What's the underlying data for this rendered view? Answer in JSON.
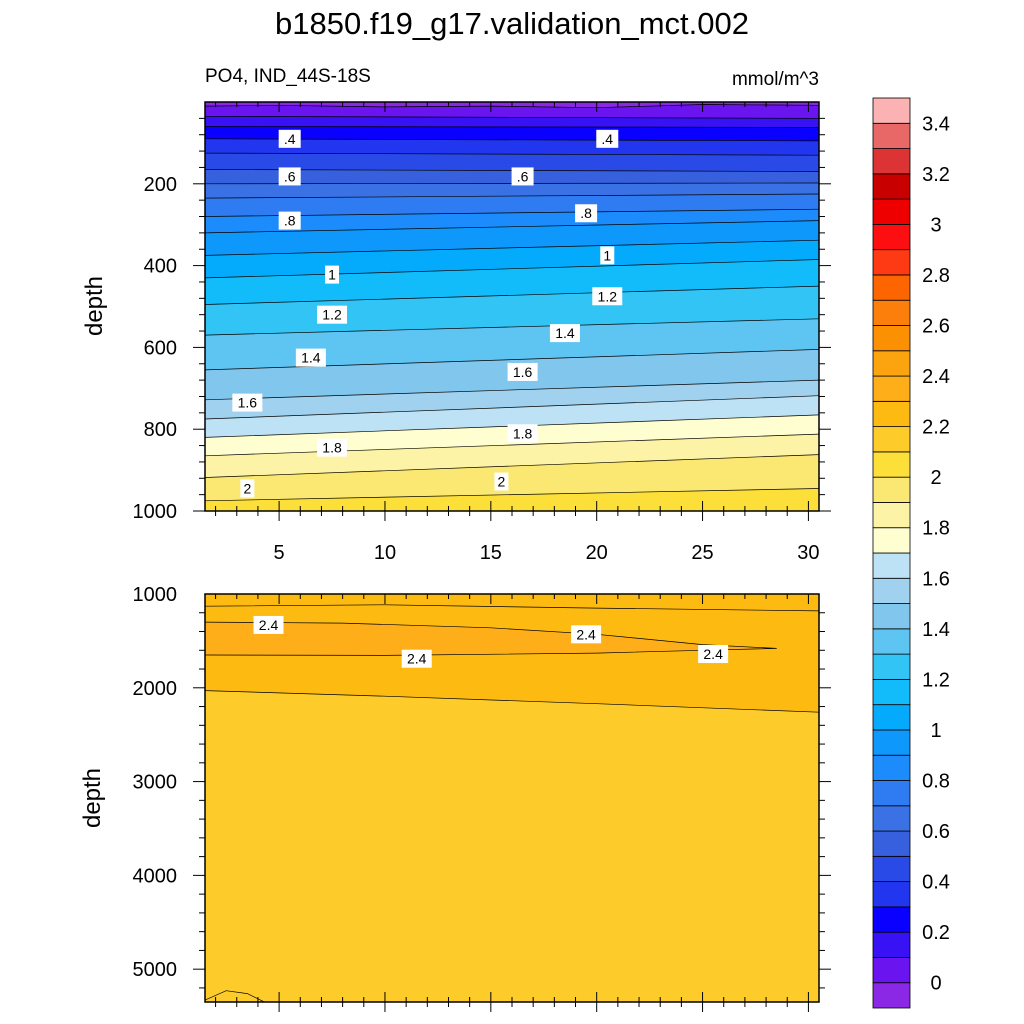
{
  "chart_data": {
    "type": "contour",
    "title": "b1850.f19_g17.validation_mct.002",
    "subtitle_left": "PO4, IND_44S-18S",
    "subtitle_right": "mmol/m^3",
    "x": {
      "lim": [
        1.5,
        30.5
      ],
      "ticks": [
        5,
        10,
        15,
        20,
        25,
        30
      ]
    },
    "panels": [
      {
        "name": "upper",
        "ylabel": "depth",
        "ylim": [
          0,
          1000
        ],
        "yticks": [
          200,
          400,
          600,
          800,
          1000
        ],
        "contours": [
          {
            "level": 0.1,
            "d": [
              [
                1.5,
                10
              ],
              [
                5,
                8
              ],
              [
                10,
                12
              ],
              [
                15,
                10
              ],
              [
                20,
                14
              ],
              [
                25,
                6
              ],
              [
                30.5,
                8
              ]
            ]
          },
          {
            "level": 0.2,
            "d": [
              [
                1.5,
                35
              ],
              [
                30.5,
                40
              ]
            ]
          },
          {
            "level": 0.3,
            "d": [
              [
                1.5,
                60
              ],
              [
                30.5,
                62
              ]
            ]
          },
          {
            "level": 0.4,
            "d": [
              [
                1.5,
                90
              ],
              [
                30.5,
                95
              ]
            ]
          },
          {
            "level": 0.5,
            "d": [
              [
                1.5,
                125
              ],
              [
                30.5,
                130
              ]
            ]
          },
          {
            "level": 0.6,
            "d": [
              [
                1.5,
                165
              ],
              [
                30.5,
                170
              ]
            ]
          },
          {
            "level": 0.7,
            "d": [
              [
                1.5,
                200
              ],
              [
                30.5,
                198
              ]
            ]
          },
          {
            "level": 0.8,
            "d": [
              [
                1.5,
                235
              ],
              [
                30.5,
                225
              ]
            ]
          },
          {
            "level": 0.9,
            "d": [
              [
                1.5,
                280
              ],
              [
                30.5,
                262
              ]
            ]
          },
          {
            "level": 1.0,
            "d": [
              [
                1.5,
                320
              ],
              [
                30.5,
                290
              ]
            ]
          },
          {
            "level": 1.1,
            "d": [
              [
                1.5,
                375
              ],
              [
                30.5,
                338
              ]
            ]
          },
          {
            "level": 1.2,
            "d": [
              [
                1.5,
                430
              ],
              [
                30.5,
                385
              ]
            ]
          },
          {
            "level": 1.3,
            "d": [
              [
                1.5,
                495
              ],
              [
                30.5,
                450
              ]
            ]
          },
          {
            "level": 1.4,
            "d": [
              [
                1.5,
                570
              ],
              [
                30.5,
                530
              ]
            ]
          },
          {
            "level": 1.5,
            "d": [
              [
                1.5,
                655
              ],
              [
                30.5,
                605
              ]
            ]
          },
          {
            "level": 1.6,
            "d": [
              [
                1.5,
                728
              ],
              [
                30.5,
                680
              ]
            ]
          },
          {
            "level": 1.7,
            "d": [
              [
                1.5,
                775
              ],
              [
                30.5,
                718
              ]
            ]
          },
          {
            "level": 1.8,
            "d": [
              [
                1.5,
                820
              ],
              [
                30.5,
                765
              ]
            ]
          },
          {
            "level": 1.9,
            "d": [
              [
                1.5,
                865
              ],
              [
                30.5,
                812
              ]
            ]
          },
          {
            "level": 2.0,
            "d": [
              [
                1.5,
                918
              ],
              [
                30.5,
                862
              ]
            ]
          },
          {
            "level": 2.1,
            "d": [
              [
                1.5,
                975
              ],
              [
                30.5,
                945
              ]
            ]
          }
        ],
        "labels": [
          {
            "text": ".4",
            "x": 5.5,
            "d": 90
          },
          {
            "text": ".4",
            "x": 20.5,
            "d": 90
          },
          {
            "text": ".6",
            "x": 5.5,
            "d": 182
          },
          {
            "text": ".6",
            "x": 16.5,
            "d": 182
          },
          {
            "text": ".8",
            "x": 5.5,
            "d": 290
          },
          {
            "text": ".8",
            "x": 19.5,
            "d": 272
          },
          {
            "text": "1",
            "x": 7.5,
            "d": 422
          },
          {
            "text": "1",
            "x": 20.5,
            "d": 375
          },
          {
            "text": "1.2",
            "x": 7.5,
            "d": 520
          },
          {
            "text": "1.2",
            "x": 20.5,
            "d": 475
          },
          {
            "text": "1.4",
            "x": 6.5,
            "d": 625
          },
          {
            "text": "1.4",
            "x": 18.5,
            "d": 565
          },
          {
            "text": "1.6",
            "x": 3.5,
            "d": 735
          },
          {
            "text": "1.6",
            "x": 16.5,
            "d": 660
          },
          {
            "text": "1.8",
            "x": 7.5,
            "d": 845
          },
          {
            "text": "1.8",
            "x": 16.5,
            "d": 810
          },
          {
            "text": "2",
            "x": 3.5,
            "d": 945
          },
          {
            "text": "2",
            "x": 15.5,
            "d": 928
          }
        ]
      },
      {
        "name": "lower",
        "ylabel": "depth",
        "ylim": [
          1000,
          5350
        ],
        "yticks": [
          1000,
          2000,
          3000,
          4000,
          5000
        ],
        "contours": [
          {
            "level": 2.3,
            "d": [
              [
                1.5,
                1130
              ],
              [
                10,
                1115
              ],
              [
                20,
                1150
              ],
              [
                30.5,
                1180
              ]
            ]
          },
          {
            "level": 2.4,
            "d": [
              [
                1.5,
                1300
              ],
              [
                8,
                1310
              ],
              [
                15,
                1360
              ],
              [
                20,
                1430
              ],
              [
                25,
                1540
              ],
              [
                28.5,
                1580
              ],
              [
                25,
                1600
              ],
              [
                20,
                1630
              ],
              [
                10,
                1655
              ],
              [
                1.5,
                1650
              ]
            ]
          },
          {
            "level": 2.3,
            "d": [
              [
                1.5,
                2030
              ],
              [
                10,
                2090
              ],
              [
                20,
                2170
              ],
              [
                30.5,
                2260
              ]
            ]
          },
          {
            "level": 2.2,
            "d": [
              [
                1.5,
                5330
              ],
              [
                2.5,
                5230
              ],
              [
                3.5,
                5260
              ],
              [
                4.3,
                5350
              ]
            ]
          }
        ],
        "labels": [
          {
            "text": "2.4",
            "x": 4.5,
            "d": 1330
          },
          {
            "text": "2.4",
            "x": 11.5,
            "d": 1690
          },
          {
            "text": "2.4",
            "x": 19.5,
            "d": 1430
          },
          {
            "text": "2.4",
            "x": 25.5,
            "d": 1640
          }
        ]
      }
    ],
    "colorbar": {
      "levels": [
        0,
        0.1,
        0.2,
        0.3,
        0.4,
        0.5,
        0.6,
        0.7,
        0.8,
        0.9,
        1.0,
        1.1,
        1.2,
        1.3,
        1.4,
        1.5,
        1.6,
        1.7,
        1.8,
        1.9,
        2.0,
        2.1,
        2.2,
        2.3,
        2.4,
        2.5,
        2.6,
        2.7,
        2.8,
        2.9,
        3.0,
        3.1,
        3.2,
        3.3,
        3.4,
        3.5
      ],
      "colors": [
        "#8b28e6",
        "#6a14f0",
        "#3812f5",
        "#0a00ff",
        "#2236f0",
        "#2a4ae8",
        "#3660de",
        "#3a72e6",
        "#2f7cf2",
        "#1c8cfd",
        "#0e98fb",
        "#04aafc",
        "#12bcfa",
        "#31c4f5",
        "#5ec5f3",
        "#80c6ed",
        "#a0d1ef",
        "#bde2f5",
        "#fefed0",
        "#fdf3a6",
        "#fbe873",
        "#fddf39",
        "#fdcc2a",
        "#fdbb12",
        "#fdae18",
        "#fca40f",
        "#fc9003",
        "#fc7f0c",
        "#fc6500",
        "#fe3a14",
        "#fd0e10",
        "#ee0000",
        "#c80000",
        "#dc3434",
        "#e86868",
        "#fab2b2"
      ],
      "tick_labels": [
        "0",
        "0.2",
        "0.4",
        "0.6",
        "0.8",
        "1",
        "1.2",
        "1.4",
        "1.6",
        "1.8",
        "2",
        "2.2",
        "2.4",
        "2.6",
        "2.8",
        "3",
        "3.2",
        "3.4"
      ]
    }
  }
}
